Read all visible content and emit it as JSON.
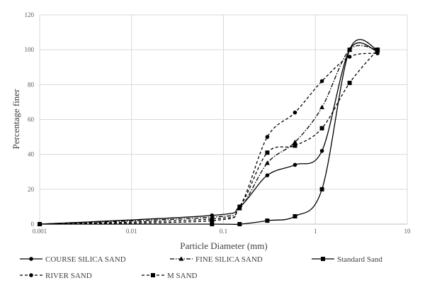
{
  "chart_data": {
    "type": "line",
    "x_scale": "log",
    "xlabel": "Particle Diameter (mm)",
    "ylabel": "Percentage finer",
    "xlim": [
      0.001,
      10
    ],
    "ylim": [
      0,
      120
    ],
    "x_ticks": [
      "0.001",
      "0.01",
      "0.1",
      "1",
      "10"
    ],
    "y_ticks": [
      "0",
      "20",
      "40",
      "60",
      "80",
      "100",
      "120"
    ],
    "grid": true,
    "legend_position": "bottom",
    "series": [
      {
        "name": "COURSE SILICA SAND",
        "marker": "circle",
        "dash": "solid",
        "points": [
          [
            0.001,
            0
          ],
          [
            0.075,
            5
          ],
          [
            0.15,
            10
          ],
          [
            0.3,
            28
          ],
          [
            0.6,
            34
          ],
          [
            1.18,
            42
          ],
          [
            2.36,
            100
          ],
          [
            4.75,
            99
          ]
        ]
      },
      {
        "name": "FINE SILICA SAND",
        "marker": "triangle",
        "dash": "dashdot",
        "points": [
          [
            0.001,
            0
          ],
          [
            0.075,
            4
          ],
          [
            0.15,
            9
          ],
          [
            0.3,
            35
          ],
          [
            0.6,
            47
          ],
          [
            1.18,
            67
          ],
          [
            2.36,
            100
          ],
          [
            4.75,
            100
          ]
        ]
      },
      {
        "name": "Standard Sand",
        "marker": "square",
        "dash": "solid",
        "points": [
          [
            0.001,
            0
          ],
          [
            0.075,
            0
          ],
          [
            0.15,
            0
          ],
          [
            0.3,
            2
          ],
          [
            0.6,
            4.5
          ],
          [
            1.18,
            20
          ],
          [
            2.36,
            100
          ],
          [
            4.75,
            100
          ]
        ]
      },
      {
        "name": "RIVER SAND",
        "marker": "circle",
        "dash": "dash",
        "points": [
          [
            0.001,
            0
          ],
          [
            0.075,
            3
          ],
          [
            0.15,
            10
          ],
          [
            0.3,
            50
          ],
          [
            0.6,
            64
          ],
          [
            1.18,
            82
          ],
          [
            2.36,
            96
          ],
          [
            4.75,
            98
          ]
        ]
      },
      {
        "name": "M SAND",
        "marker": "square",
        "dash": "dash",
        "points": [
          [
            0.001,
            0
          ],
          [
            0.075,
            2
          ],
          [
            0.15,
            10
          ],
          [
            0.3,
            41
          ],
          [
            0.6,
            45
          ],
          [
            1.18,
            55
          ],
          [
            2.36,
            81
          ],
          [
            4.75,
            100
          ]
        ]
      }
    ]
  }
}
